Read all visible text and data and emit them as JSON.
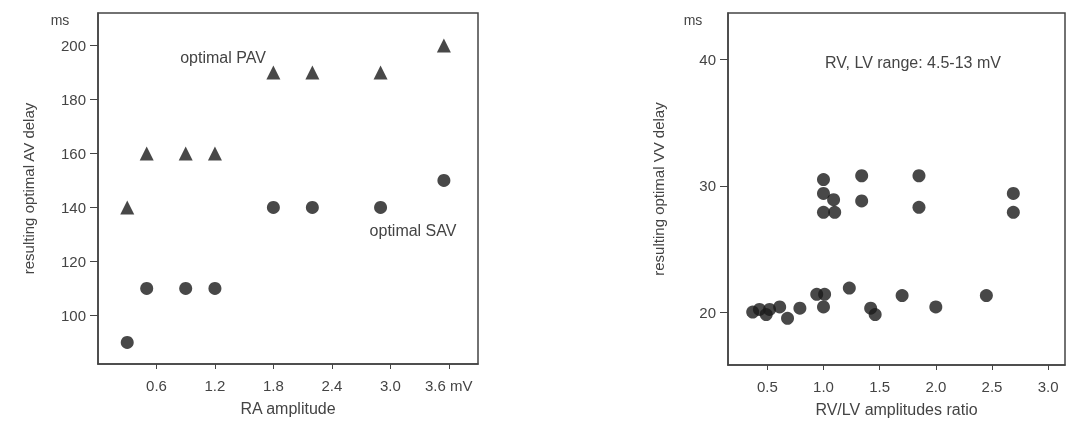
{
  "chart_data": [
    {
      "type": "scatter",
      "xlabel": "RA amplitude",
      "ylabel": "resulting optimal AV delay",
      "xlim": [
        0,
        3.9
      ],
      "ylim": [
        82,
        212
      ],
      "xticks": [
        0.6,
        1.2,
        1.8,
        2.4,
        {
          "value": 3,
          "label": "3.0"
        },
        {
          "value": 3.6,
          "label": "3.6 mV"
        }
      ],
      "yticks": [
        100,
        120,
        140,
        160,
        180,
        200
      ],
      "grid": false,
      "series": [
        {
          "color": "#1a1a1a",
          "marker": "triangle",
          "x": [
            0.3,
            0.5,
            0.9,
            1.2,
            1.8,
            2.2,
            2.9,
            3.55
          ],
          "values": [
            140,
            160,
            160,
            160,
            190,
            190,
            190,
            200
          ]
        },
        {
          "color": "#1a1a1a",
          "marker": "circle",
          "x": [
            0.3,
            0.5,
            0.9,
            1.2,
            1.8,
            2.2,
            2.9,
            3.55
          ],
          "values": [
            90,
            110,
            110,
            110,
            140,
            140,
            140,
            150
          ]
        }
      ],
      "annotations": [
        "ms",
        "optimal PAV",
        "optimal SAV"
      ]
    },
    {
      "type": "scatter",
      "xlabel": "RV/LV amplitudes ratio",
      "ylabel": "resulting optimal VV delay",
      "xlim": [
        0.15,
        3.15
      ],
      "ylim": [
        15.8,
        43.7
      ],
      "xticks": [
        0.5,
        {
          "value": 1,
          "label": "1.0"
        },
        1.5,
        {
          "value": 2,
          "label": "2.0"
        },
        2.5,
        {
          "value": 3,
          "label": "3.0"
        }
      ],
      "yticks": [
        20,
        30,
        40
      ],
      "grid": false,
      "marker": "circle",
      "series": [
        {
          "color": "#1a1a1a",
          "x": [
            1.0,
            1.0,
            1.09,
            1.0,
            1.1,
            1.34,
            1.34,
            1.85,
            1.85,
            2.69,
            2.69,
            0.37,
            0.43,
            0.49,
            0.52,
            0.61,
            0.68,
            0.79,
            0.94,
            1.01,
            1.0,
            1.23,
            1.42,
            1.46,
            1.7,
            2.0,
            2.45
          ],
          "values": [
            30.5,
            29.4,
            28.9,
            27.9,
            27.9,
            30.8,
            28.8,
            30.8,
            28.3,
            29.4,
            27.9,
            20,
            20.2,
            19.8,
            20.2,
            20.4,
            19.5,
            20.3,
            21.4,
            21.4,
            20.4,
            21.9,
            20.3,
            19.8,
            21.3,
            20.4,
            21.3
          ]
        }
      ],
      "annotations": [
        "ms",
        "RV, LV range: 4.5-13 mV"
      ]
    }
  ]
}
